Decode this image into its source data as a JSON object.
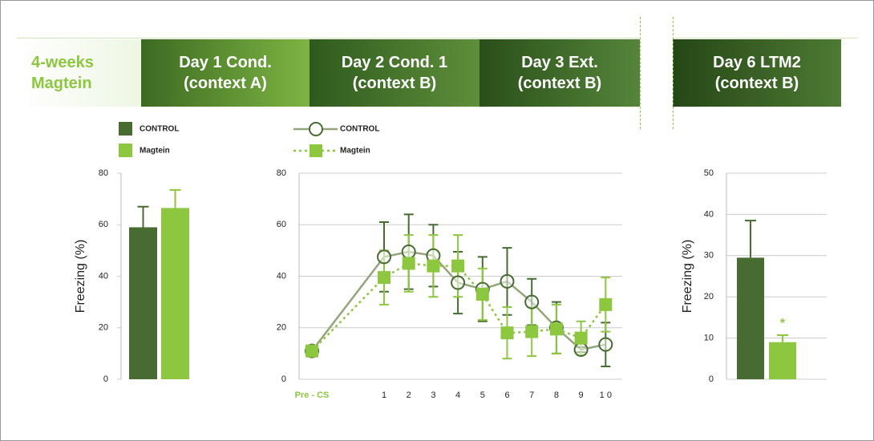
{
  "timeline": [
    [
      "4-weeks",
      "Magtein"
    ],
    [
      "Day 1 Cond.",
      "(context A)"
    ],
    [
      "Day 2 Cond. 1",
      "(context B)"
    ],
    [
      "Day 3 Ext.",
      "(context B)"
    ],
    [
      "Day 6  LTM2",
      "(context B)"
    ]
  ],
  "chart_data": [
    {
      "type": "bar",
      "ylabel": "Freezing (%)",
      "categories": [
        null
      ],
      "ylim": [
        0,
        80
      ],
      "yticks": [
        0,
        20,
        40,
        60,
        80
      ],
      "grid": false,
      "series": [
        {
          "name": "CONTROL",
          "color": "#476b30",
          "values": [
            59
          ],
          "errors": [
            8
          ]
        },
        {
          "name": "Magtein",
          "color": "#8dc63f",
          "values": [
            66.5
          ],
          "errors": [
            7
          ]
        }
      ]
    },
    {
      "type": "line",
      "categories": [
        "Pre - CS",
        "1",
        "2",
        "3",
        "4",
        "5",
        "6",
        "7",
        "8",
        "9",
        "1 0"
      ],
      "ylim": [
        0,
        80
      ],
      "yticks": [
        0,
        20,
        40,
        60,
        80
      ],
      "grid": true,
      "series": [
        {
          "name": "CONTROL",
          "color": "#476b30",
          "line_color": "#93a57a",
          "marker": "circle",
          "values": [
            11,
            47.5,
            49.5,
            48,
            37.5,
            35,
            38,
            30,
            20,
            11.5,
            13.5
          ],
          "errors": [
            1,
            13.5,
            14.5,
            12,
            12,
            12.5,
            13,
            9,
            10,
            1,
            8.5
          ]
        },
        {
          "name": "Magtein",
          "color": "#8dc63f",
          "line_color": "#8dc63f",
          "marker": "square",
          "dashed": true,
          "values": [
            11,
            39.5,
            45,
            44,
            44,
            33,
            18,
            18.5,
            19.5,
            16,
            29
          ],
          "errors": [
            1,
            10.5,
            11,
            12,
            12,
            10,
            10,
            9.5,
            9.5,
            6.5,
            10.5
          ]
        }
      ]
    },
    {
      "type": "bar",
      "ylabel": "Freezing (%)",
      "categories": [
        null
      ],
      "ylim": [
        0,
        50
      ],
      "yticks": [
        0,
        10,
        20,
        30,
        40,
        50
      ],
      "grid": true,
      "annotation": "*",
      "series": [
        {
          "color": "#476b30",
          "values": [
            29.5
          ],
          "errors": [
            9
          ]
        },
        {
          "color": "#8dc63f",
          "values": [
            9
          ],
          "errors": [
            1.7
          ]
        }
      ]
    }
  ]
}
